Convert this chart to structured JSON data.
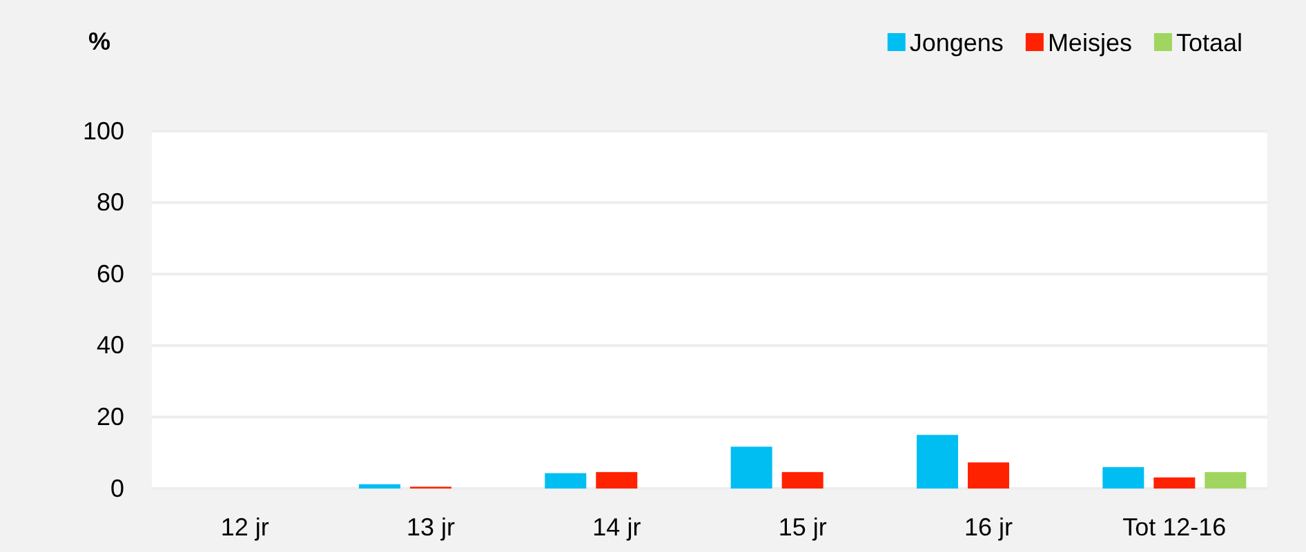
{
  "chart_data": {
    "type": "bar",
    "ylabel": "%",
    "categories": [
      "12 jr",
      "13 jr",
      "14 jr",
      "15 jr",
      "16 jr",
      "Tot 12-16"
    ],
    "series": [
      {
        "name": "Jongens",
        "color": "#00bef2",
        "values": [
          0,
          1.2,
          4.3,
          11.7,
          15,
          6
        ]
      },
      {
        "name": "Meisjes",
        "color": "#ff2200",
        "values": [
          0,
          0.5,
          4.6,
          4.6,
          7.3,
          3.1
        ]
      },
      {
        "name": "Totaal",
        "color": "#a0d65f",
        "values": [
          null,
          null,
          null,
          null,
          null,
          4.6
        ]
      }
    ],
    "ylim": [
      0,
      100
    ],
    "yticks": [
      0,
      20,
      40,
      60,
      80,
      100
    ],
    "grid": "y",
    "legend": "top right"
  }
}
